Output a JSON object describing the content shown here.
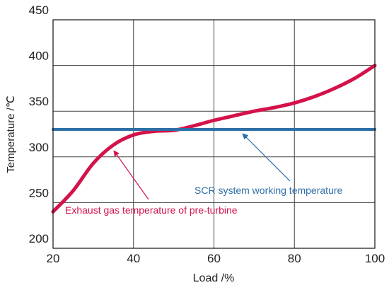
{
  "chart_data": {
    "type": "line",
    "x": [
      20,
      25,
      30,
      35,
      40,
      45,
      50,
      55,
      60,
      65,
      70,
      75,
      80,
      85,
      90,
      95,
      100
    ],
    "series": [
      {
        "name": "Exhaust gas temperature of pre-turbine",
        "color": "#d4124a",
        "values": [
          240,
          263,
          293,
          313,
          324,
          328,
          329,
          334,
          340,
          345,
          350,
          354,
          359,
          366,
          375,
          386,
          400
        ]
      },
      {
        "name": "SCR system working temperature",
        "color": "#2e6fa7",
        "values": [
          330,
          330,
          330,
          330,
          330,
          330,
          330,
          330,
          330,
          330,
          330,
          330,
          330,
          330,
          330,
          330,
          330
        ]
      }
    ],
    "xlabel": "Load /%",
    "ylabel": "Temperature /℃",
    "xlim": [
      20,
      100
    ],
    "xticks": [
      20,
      40,
      60,
      80,
      100
    ],
    "ylim": [
      200,
      450
    ],
    "yticks": [
      200,
      250,
      300,
      350,
      400,
      450
    ],
    "grid": true
  }
}
